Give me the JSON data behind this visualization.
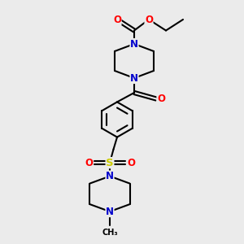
{
  "bg_color": "#ebebeb",
  "bond_color": "#000000",
  "nitrogen_color": "#0000cc",
  "oxygen_color": "#ff0000",
  "sulfur_color": "#cccc00",
  "line_width": 1.5,
  "fig_width": 3.0,
  "fig_height": 3.0,
  "dpi": 100,
  "xlim": [
    0,
    10
  ],
  "ylim": [
    0,
    10
  ]
}
